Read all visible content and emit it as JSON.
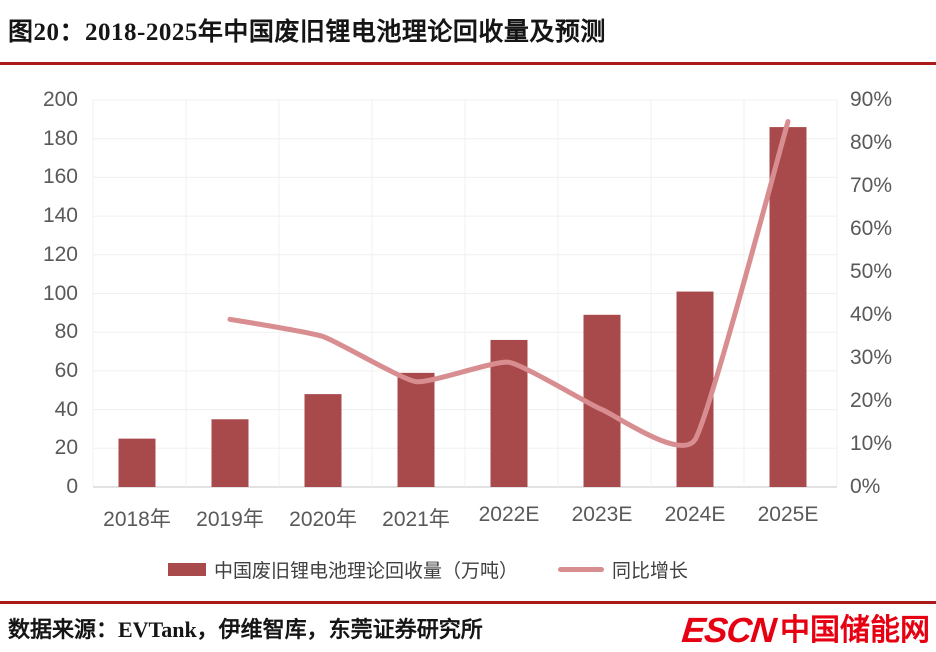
{
  "header": {
    "title": "图20：2018-2025年中国废旧锂电池理论回收量及预测"
  },
  "chart_data": {
    "type": "bar",
    "combo": "bar+line",
    "categories": [
      "2018年",
      "2019年",
      "2020年",
      "2021年",
      "2022E",
      "2023E",
      "2024E",
      "2025E"
    ],
    "series": [
      {
        "name": "中国废旧锂电池理论回收量（万吨）",
        "render": "bar",
        "axis": "left",
        "values": [
          25,
          35,
          48,
          59,
          76,
          89,
          101,
          186
        ]
      },
      {
        "name": "同比增长",
        "render": "line",
        "axis": "right",
        "unit": "%",
        "values": [
          null,
          39,
          35,
          24.5,
          29,
          18,
          11,
          85
        ]
      }
    ],
    "left_axis": {
      "min": 0,
      "max": 200,
      "step": 20,
      "tick_labels": [
        "0",
        "20",
        "40",
        "60",
        "80",
        "100",
        "120",
        "140",
        "160",
        "180",
        "200"
      ]
    },
    "right_axis": {
      "min": 0,
      "max": 90,
      "step": 10,
      "format": "percent",
      "tick_labels": [
        "0%",
        "10%",
        "20%",
        "30%",
        "40%",
        "50%",
        "60%",
        "70%",
        "80%",
        "90%"
      ]
    },
    "grid": "faint",
    "legend_position": "bottom"
  },
  "legend": {
    "bar_label": "中国废旧锂电池理论回收量（万吨）",
    "line_label": "同比增长"
  },
  "footer": {
    "source": "数据来源：EVTank，伊维智库，东莞证券研究所",
    "logo_en": "ESCN",
    "logo_cn": "中国储能网"
  },
  "colors": {
    "bar": "#a84a4c",
    "line": "#d88e90",
    "rule": "#aa1a1a",
    "logo": "#e60012",
    "axis_text": "#595959",
    "gridline": "#f0f0f0",
    "baseline": "#d9d9d9"
  }
}
